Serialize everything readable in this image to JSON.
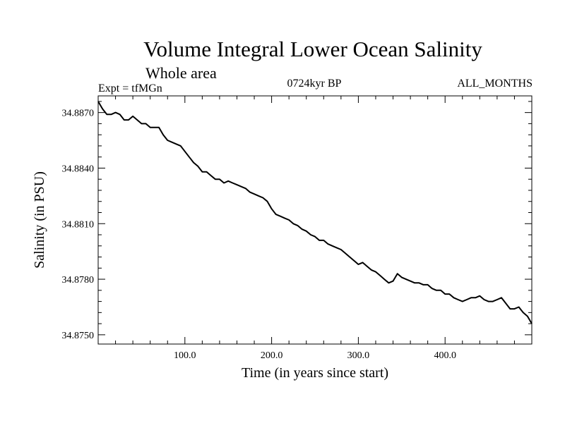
{
  "header": {
    "title": "Volume Integral Lower Ocean Salinity",
    "subtitle": "Whole area",
    "expt_label": "Expt = tfMGn",
    "center_label": "0724kyr BP",
    "right_label": "ALL_MONTHS"
  },
  "chart_data": {
    "type": "line",
    "title": "Volume Integral Lower Ocean Salinity",
    "xlabel": "Time (in years since start)",
    "ylabel": "Salinity (in PSU)",
    "xlim": [
      0,
      500
    ],
    "ylim": [
      34.8745,
      34.8879
    ],
    "x_ticks": [
      100,
      200,
      300,
      400
    ],
    "x_tick_labels": [
      "100.0",
      "200.0",
      "300.0",
      "400.0"
    ],
    "y_ticks": [
      34.875,
      34.878,
      34.881,
      34.884,
      34.887
    ],
    "y_tick_labels": [
      "34.8750",
      "34.8780",
      "34.8810",
      "34.8840",
      "34.8870"
    ],
    "grid": false,
    "series": [
      {
        "color": "#000000",
        "x": [
          0,
          5,
          10,
          15,
          20,
          25,
          30,
          35,
          40,
          45,
          50,
          55,
          60,
          65,
          70,
          75,
          80,
          85,
          90,
          95,
          100,
          105,
          110,
          115,
          120,
          125,
          130,
          135,
          140,
          145,
          150,
          155,
          160,
          165,
          170,
          175,
          180,
          185,
          190,
          195,
          200,
          205,
          210,
          215,
          220,
          225,
          230,
          235,
          240,
          245,
          250,
          255,
          260,
          265,
          270,
          275,
          280,
          285,
          290,
          295,
          300,
          305,
          310,
          315,
          320,
          325,
          330,
          335,
          340,
          345,
          350,
          355,
          360,
          365,
          370,
          375,
          380,
          385,
          390,
          395,
          400,
          405,
          410,
          415,
          420,
          425,
          430,
          435,
          440,
          445,
          450,
          455,
          460,
          465,
          470,
          475,
          480,
          485,
          490,
          495,
          500
        ],
        "y": [
          34.8876,
          34.8872,
          34.8869,
          34.8869,
          34.887,
          34.8869,
          34.8866,
          34.8866,
          34.8868,
          34.8866,
          34.8864,
          34.8864,
          34.8862,
          34.8862,
          34.8862,
          34.8858,
          34.8855,
          34.8854,
          34.8853,
          34.8852,
          34.8849,
          34.8846,
          34.8843,
          34.8841,
          34.8838,
          34.8838,
          34.8836,
          34.8834,
          34.8834,
          34.8832,
          34.8833,
          34.8832,
          34.8831,
          34.883,
          34.8829,
          34.8827,
          34.8826,
          34.8825,
          34.8824,
          34.8822,
          34.8818,
          34.8815,
          34.8814,
          34.8813,
          34.8812,
          34.881,
          34.8809,
          34.8807,
          34.8806,
          34.8804,
          34.8803,
          34.8801,
          34.8801,
          34.8799,
          34.8798,
          34.8797,
          34.8796,
          34.8794,
          34.8792,
          34.879,
          34.8788,
          34.8789,
          34.8787,
          34.8785,
          34.8784,
          34.8782,
          34.878,
          34.8778,
          34.8779,
          34.8783,
          34.8781,
          34.878,
          34.8779,
          34.8778,
          34.8778,
          34.8777,
          34.8777,
          34.8775,
          34.8774,
          34.8774,
          34.8772,
          34.8772,
          34.877,
          34.8769,
          34.8768,
          34.8769,
          34.877,
          34.877,
          34.8771,
          34.8769,
          34.8768,
          34.8768,
          34.8769,
          34.877,
          34.8767,
          34.8764,
          34.8764,
          34.8765,
          34.8762,
          34.876,
          34.8756
        ]
      }
    ]
  }
}
